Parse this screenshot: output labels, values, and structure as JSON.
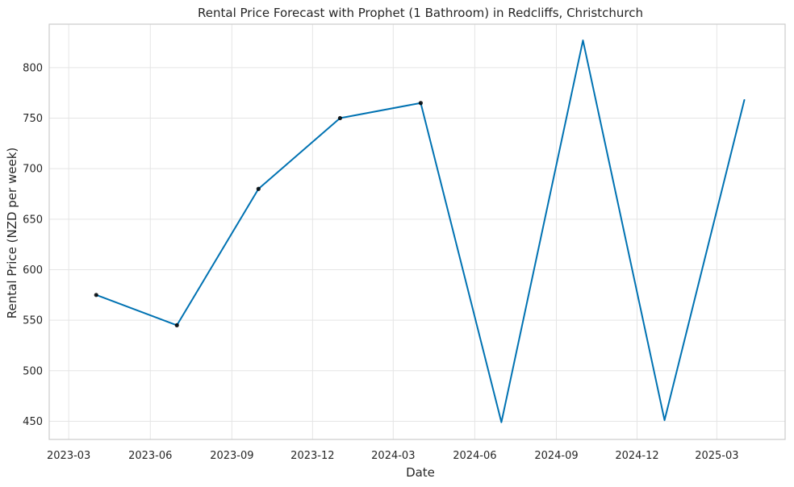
{
  "chart_data": {
    "type": "line",
    "title": "Rental Price Forecast with Prophet (1 Bathroom) in Redcliffs, Christchurch",
    "xlabel": "Date",
    "ylabel": "Rental Price (NZD per week)",
    "x_ticks": [
      {
        "date": "2023-03-01",
        "label": "2023-03"
      },
      {
        "date": "2023-06-01",
        "label": "2023-06"
      },
      {
        "date": "2023-09-01",
        "label": "2023-09"
      },
      {
        "date": "2023-12-01",
        "label": "2023-12"
      },
      {
        "date": "2024-03-01",
        "label": "2024-03"
      },
      {
        "date": "2024-06-01",
        "label": "2024-06"
      },
      {
        "date": "2024-09-01",
        "label": "2024-09"
      },
      {
        "date": "2024-12-01",
        "label": "2024-12"
      },
      {
        "date": "2025-03-01",
        "label": "2025-03"
      }
    ],
    "y_ticks": [
      450,
      500,
      550,
      600,
      650,
      700,
      750,
      800
    ],
    "xlim": [
      "2023-02-07",
      "2025-05-17"
    ],
    "ylim": [
      432,
      843
    ],
    "grid": true,
    "series": [
      {
        "role": "forecast",
        "color": "#0072b2",
        "points": [
          {
            "x": "2023-04-01",
            "y": 575
          },
          {
            "x": "2023-07-01",
            "y": 545
          },
          {
            "x": "2023-10-01",
            "y": 680
          },
          {
            "x": "2024-01-01",
            "y": 750
          },
          {
            "x": "2024-04-01",
            "y": 765
          },
          {
            "x": "2024-07-01",
            "y": 449
          },
          {
            "x": "2024-10-01",
            "y": 827
          },
          {
            "x": "2025-01-01",
            "y": 451
          },
          {
            "x": "2025-04-01",
            "y": 768
          }
        ]
      },
      {
        "role": "observed",
        "color": "#000000",
        "points": [
          {
            "x": "2023-04-01",
            "y": 575
          },
          {
            "x": "2023-07-01",
            "y": 545
          },
          {
            "x": "2023-10-01",
            "y": 680
          },
          {
            "x": "2024-01-01",
            "y": 750
          },
          {
            "x": "2024-04-01",
            "y": 765
          }
        ]
      }
    ]
  }
}
